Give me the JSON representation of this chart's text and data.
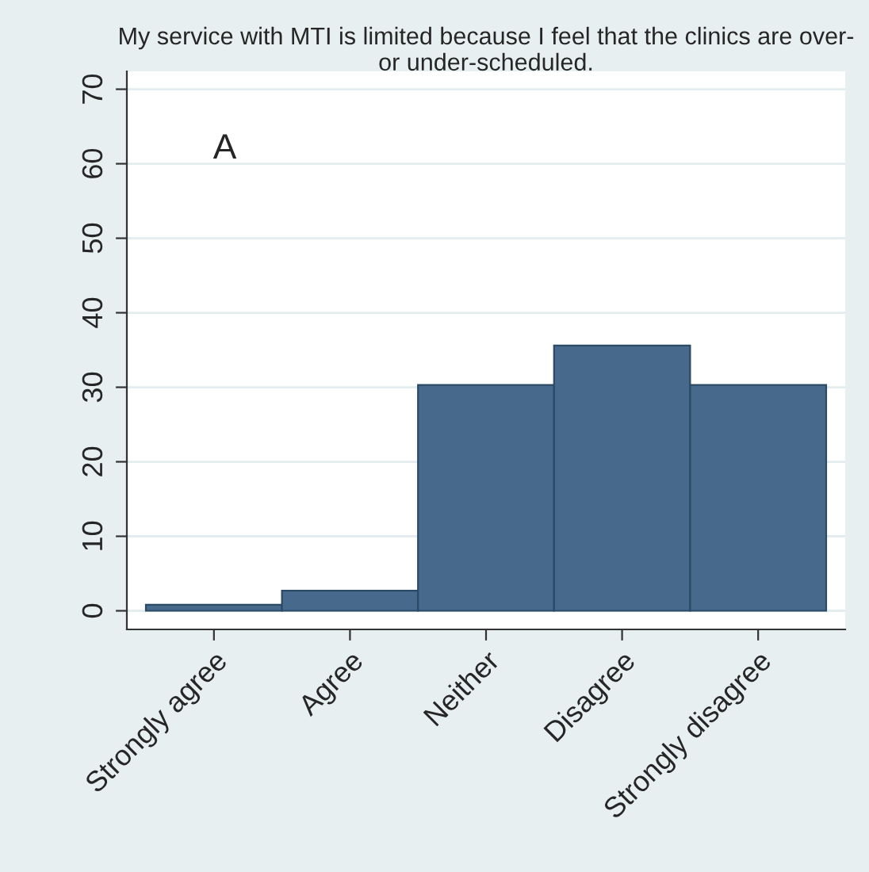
{
  "chart_data": {
    "type": "bar",
    "title": "My service with MTI is limited because I feel that the clinics are over- or under-scheduled.",
    "categories": [
      "Strongly agree",
      "Agree",
      "Neither",
      "Disagree",
      "Strongly disagree"
    ],
    "values": [
      0.8,
      2.7,
      30.3,
      35.6,
      30.3
    ],
    "color": "#476a8c",
    "ylim": [
      -2.5,
      72.4
    ],
    "yticks": [
      0,
      10,
      20,
      30,
      40,
      50,
      60,
      70
    ],
    "grid": "y",
    "annotations": [
      "A"
    ]
  }
}
